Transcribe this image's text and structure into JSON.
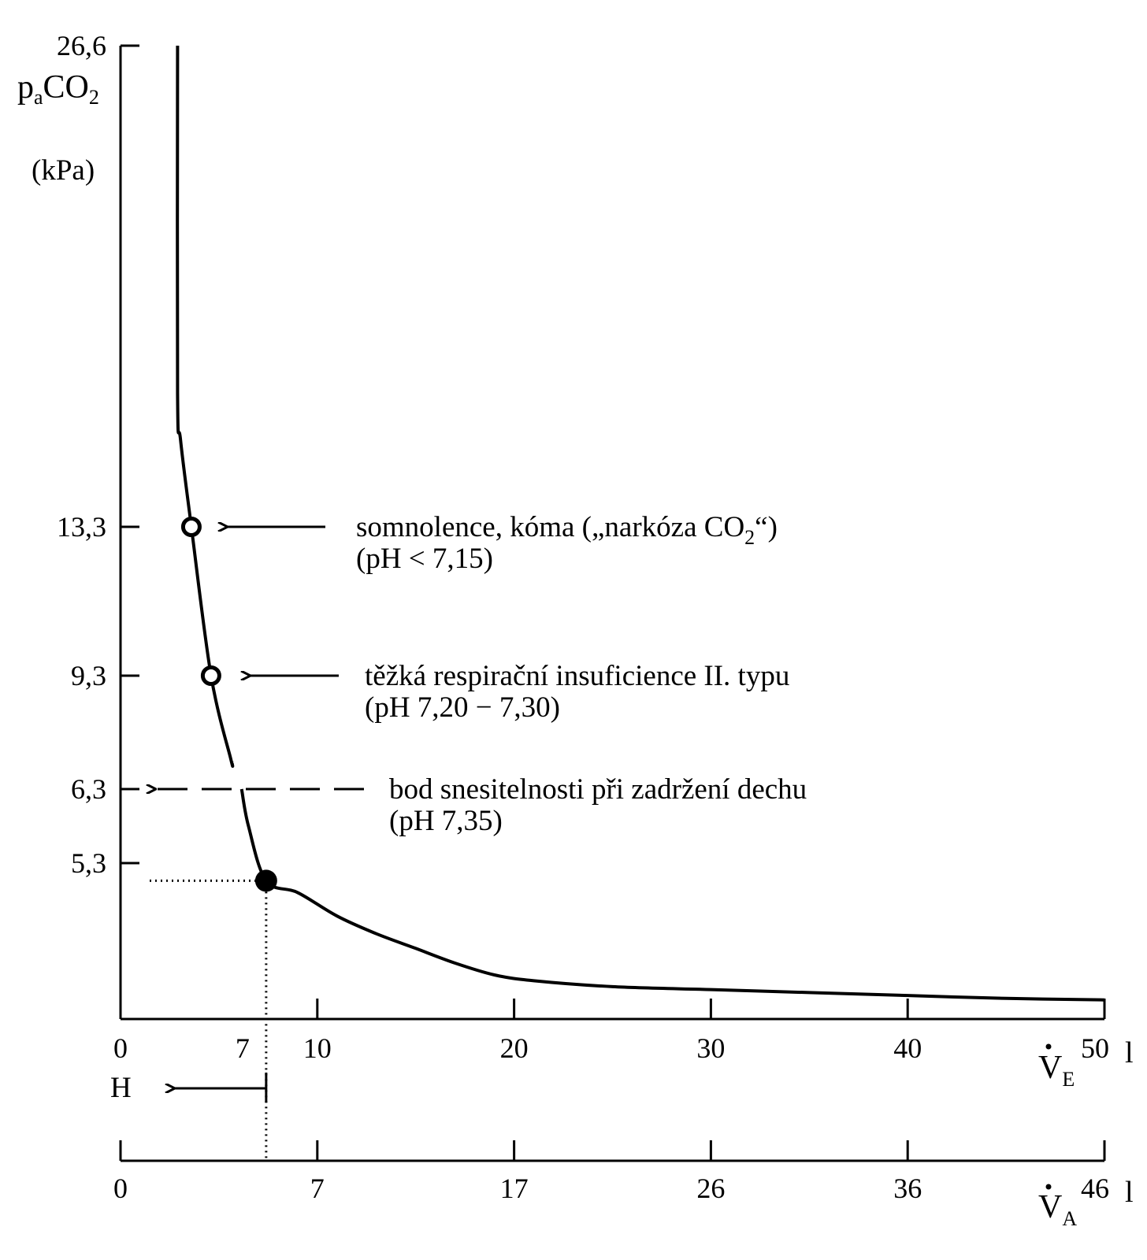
{
  "chart_data": {
    "type": "line",
    "y_axis": {
      "label_parts": {
        "p": "p",
        "a": "a",
        "co": "CO",
        "two": "2"
      },
      "unit": "(kPa)",
      "range": [
        0,
        26.6
      ],
      "ticks": [
        {
          "value": 26.6,
          "label": "26,6"
        },
        {
          "value": 13.3,
          "label": "13,3"
        },
        {
          "value": 9.3,
          "label": "9,3"
        },
        {
          "value": 6.3,
          "label": "6,3"
        },
        {
          "value": 5.3,
          "label": "5,3"
        }
      ]
    },
    "x_axis_ve": {
      "symbol": "V",
      "subscript": "E",
      "range": [
        0,
        50
      ],
      "ticks": [
        {
          "value": 0,
          "label": "0"
        },
        {
          "value": 10,
          "label": "10"
        },
        {
          "value": 20,
          "label": "20"
        },
        {
          "value": 30,
          "label": "30"
        },
        {
          "value": 40,
          "label": "40"
        },
        {
          "value": 50,
          "label": "50"
        }
      ],
      "unit": "l",
      "extra_label": {
        "value": 6.2,
        "label": "7"
      }
    },
    "x_axis_va": {
      "symbol": "V",
      "subscript": "A",
      "ticks": [
        {
          "value": 0,
          "label": "0"
        },
        {
          "value": 10,
          "label": "7"
        },
        {
          "value": 20,
          "label": "17"
        },
        {
          "value": 30,
          "label": "26"
        },
        {
          "value": 40,
          "label": "36"
        },
        {
          "value": 50,
          "label": "46"
        }
      ],
      "unit": "l"
    },
    "curve": {
      "x": [
        2.9,
        2.9,
        3.05,
        3.6,
        4.6,
        5.6,
        6.5,
        7.4,
        9,
        11,
        13,
        15,
        17,
        19,
        21,
        25,
        30,
        35,
        40,
        45,
        50
      ],
      "y": [
        26.6,
        17,
        15.7,
        13.3,
        9.3,
        7.1,
        5.8,
        4.7,
        4.3,
        3.5,
        2.9,
        2.4,
        1.9,
        1.5,
        1.3,
        1.1,
        1.0,
        0.9,
        0.8,
        0.7,
        0.65
      ]
    },
    "curve_gap_y": [
      6.3,
      7.0
    ],
    "points": [
      {
        "x": 3.6,
        "y": 13.3,
        "style": "open"
      },
      {
        "x": 4.6,
        "y": 9.3,
        "style": "open"
      },
      {
        "x": 7.4,
        "y": 4.7,
        "style": "filled"
      }
    ],
    "annotations": [
      {
        "y": 13.3,
        "lines": [
          "somnolence, kóma",
          "(„narkóza CO",
          "2",
          "“)"
        ],
        "second_line": "(pH < 7,15)"
      },
      {
        "y": 9.3,
        "lines": [
          "těžká respirační insuficience II. typu"
        ],
        "second_line": "(pH 7,20 − 7,30)"
      },
      {
        "y": 6.3,
        "lines": [
          "bod snesitelnosti při zadržení dechu"
        ],
        "second_line": "(pH 7,35)"
      }
    ],
    "marker_h": {
      "label": "H",
      "x": 7.4
    }
  }
}
